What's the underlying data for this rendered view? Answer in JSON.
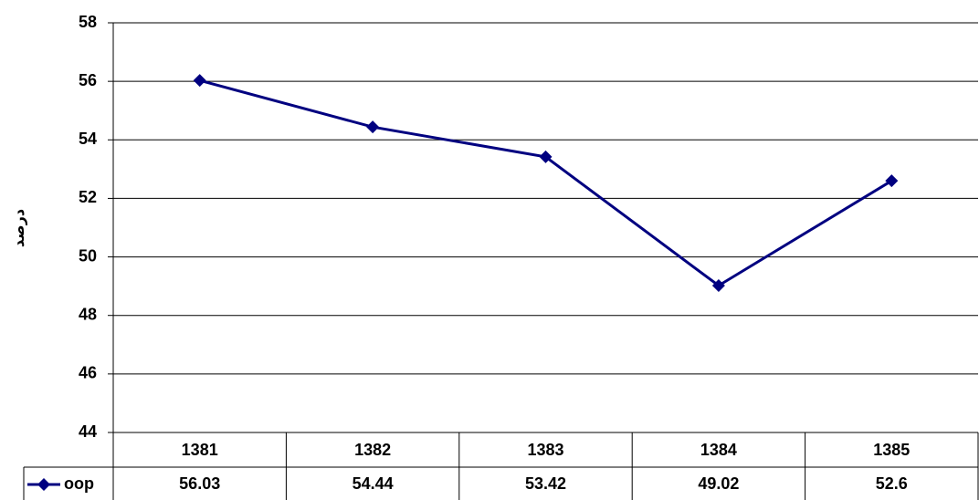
{
  "chart_data": {
    "type": "line",
    "y_label": "درصد",
    "categories": [
      "1381",
      "1382",
      "1383",
      "1384",
      "1385"
    ],
    "series": [
      {
        "name": "oop",
        "color": "#000080",
        "values": [
          56.03,
          54.44,
          53.42,
          49.02,
          52.6
        ]
      }
    ],
    "ylim": [
      44,
      58
    ],
    "yticks": [
      44,
      46,
      48,
      50,
      52,
      54,
      56,
      58
    ],
    "grid": true,
    "data_table": true
  }
}
